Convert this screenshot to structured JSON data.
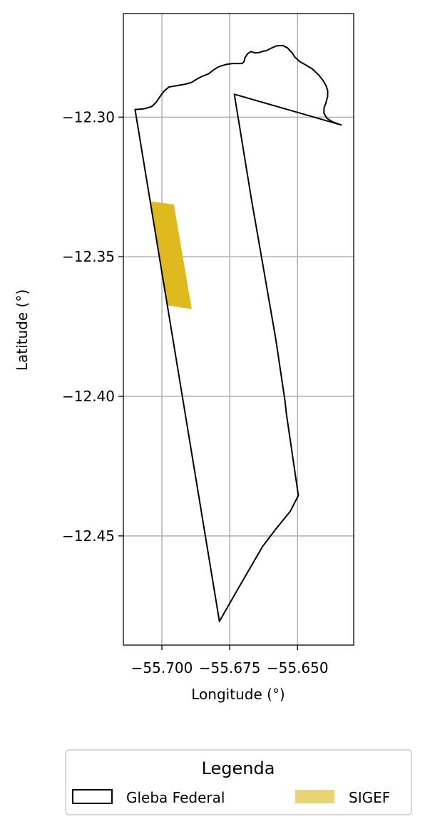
{
  "chart_data": {
    "type": "map",
    "xlabel": "Longitude (°)",
    "ylabel": "Latitude (°)",
    "xlim": [
      -55.7142,
      -55.6293
    ],
    "ylim": [
      -12.4891,
      -12.2629
    ],
    "grid": true,
    "x_ticks": [
      {
        "value": -55.7,
        "label": "−55.700"
      },
      {
        "value": -55.675,
        "label": "−55.675"
      },
      {
        "value": -55.65,
        "label": "−55.650"
      }
    ],
    "y_ticks": [
      {
        "value": -12.3,
        "label": "−12.30"
      },
      {
        "value": -12.35,
        "label": "−12.35"
      },
      {
        "value": -12.4,
        "label": "−12.40"
      },
      {
        "value": -12.45,
        "label": "−12.45"
      }
    ],
    "layers": [
      {
        "name": "Gleba Federal",
        "kind": "outline",
        "stroke": "#000000",
        "fill": "none",
        "coords": [
          [
            -55.6733,
            -12.2918
          ],
          [
            -55.6339,
            -12.3028
          ],
          [
            -55.6371,
            -12.3017
          ],
          [
            -55.6393,
            -12.3003
          ],
          [
            -55.6403,
            -12.2985
          ],
          [
            -55.6402,
            -12.2966
          ],
          [
            -55.6396,
            -12.2951
          ],
          [
            -55.6389,
            -12.2926
          ],
          [
            -55.6389,
            -12.2905
          ],
          [
            -55.6395,
            -12.2887
          ],
          [
            -55.6407,
            -12.2867
          ],
          [
            -55.6421,
            -12.285
          ],
          [
            -55.6445,
            -12.2828
          ],
          [
            -55.6468,
            -12.2814
          ],
          [
            -55.6492,
            -12.2801
          ],
          [
            -55.6511,
            -12.2784
          ],
          [
            -55.6519,
            -12.2771
          ],
          [
            -55.6537,
            -12.2752
          ],
          [
            -55.6555,
            -12.2743
          ],
          [
            -55.6578,
            -12.2745
          ],
          [
            -55.6597,
            -12.2753
          ],
          [
            -55.6615,
            -12.2762
          ],
          [
            -55.6628,
            -12.2764
          ],
          [
            -55.6642,
            -12.2769
          ],
          [
            -55.6657,
            -12.277
          ],
          [
            -55.6672,
            -12.2765
          ],
          [
            -55.6684,
            -12.2773
          ],
          [
            -55.6694,
            -12.2788
          ],
          [
            -55.6697,
            -12.2801
          ],
          [
            -55.6705,
            -12.2808
          ],
          [
            -55.672,
            -12.2808
          ],
          [
            -55.6739,
            -12.2808
          ],
          [
            -55.6762,
            -12.2811
          ],
          [
            -55.6789,
            -12.2819
          ],
          [
            -55.6808,
            -12.283
          ],
          [
            -55.6828,
            -12.2845
          ],
          [
            -55.6854,
            -12.2855
          ],
          [
            -55.6873,
            -12.2865
          ],
          [
            -55.6891,
            -12.2876
          ],
          [
            -55.6914,
            -12.2882
          ],
          [
            -55.6944,
            -12.2887
          ],
          [
            -55.6974,
            -12.2892
          ],
          [
            -55.6993,
            -12.2908
          ],
          [
            -55.7008,
            -12.2928
          ],
          [
            -55.7021,
            -12.2947
          ],
          [
            -55.7037,
            -12.2962
          ],
          [
            -55.7065,
            -12.297
          ],
          [
            -55.7099,
            -12.2973
          ],
          [
            -55.6788,
            -12.4806
          ],
          [
            -55.6722,
            -12.4694
          ],
          [
            -55.6629,
            -12.4538
          ],
          [
            -55.6579,
            -12.4474
          ],
          [
            -55.6527,
            -12.4412
          ],
          [
            -55.6497,
            -12.4355
          ],
          [
            -55.6541,
            -12.4062
          ],
          [
            -55.6546,
            -12.4017
          ],
          [
            -55.658,
            -12.3796
          ],
          [
            -55.667,
            -12.3294
          ],
          [
            -55.6733,
            -12.2918
          ]
        ]
      },
      {
        "name": "SIGEF",
        "kind": "fill",
        "fill": "#dfba1e",
        "legend_fill": "#e9d475",
        "coords": [
          [
            -55.7041,
            -12.3302
          ],
          [
            -55.6956,
            -12.3313
          ],
          [
            -55.689,
            -12.3688
          ],
          [
            -55.698,
            -12.3674
          ],
          [
            -55.7041,
            -12.3302
          ]
        ]
      }
    ],
    "legend": {
      "title": "Legenda",
      "placement": "bottom-center",
      "items": [
        {
          "label": "Gleba Federal",
          "symbol": "outline"
        },
        {
          "label": "SIGEF",
          "symbol": "fill"
        }
      ]
    }
  }
}
